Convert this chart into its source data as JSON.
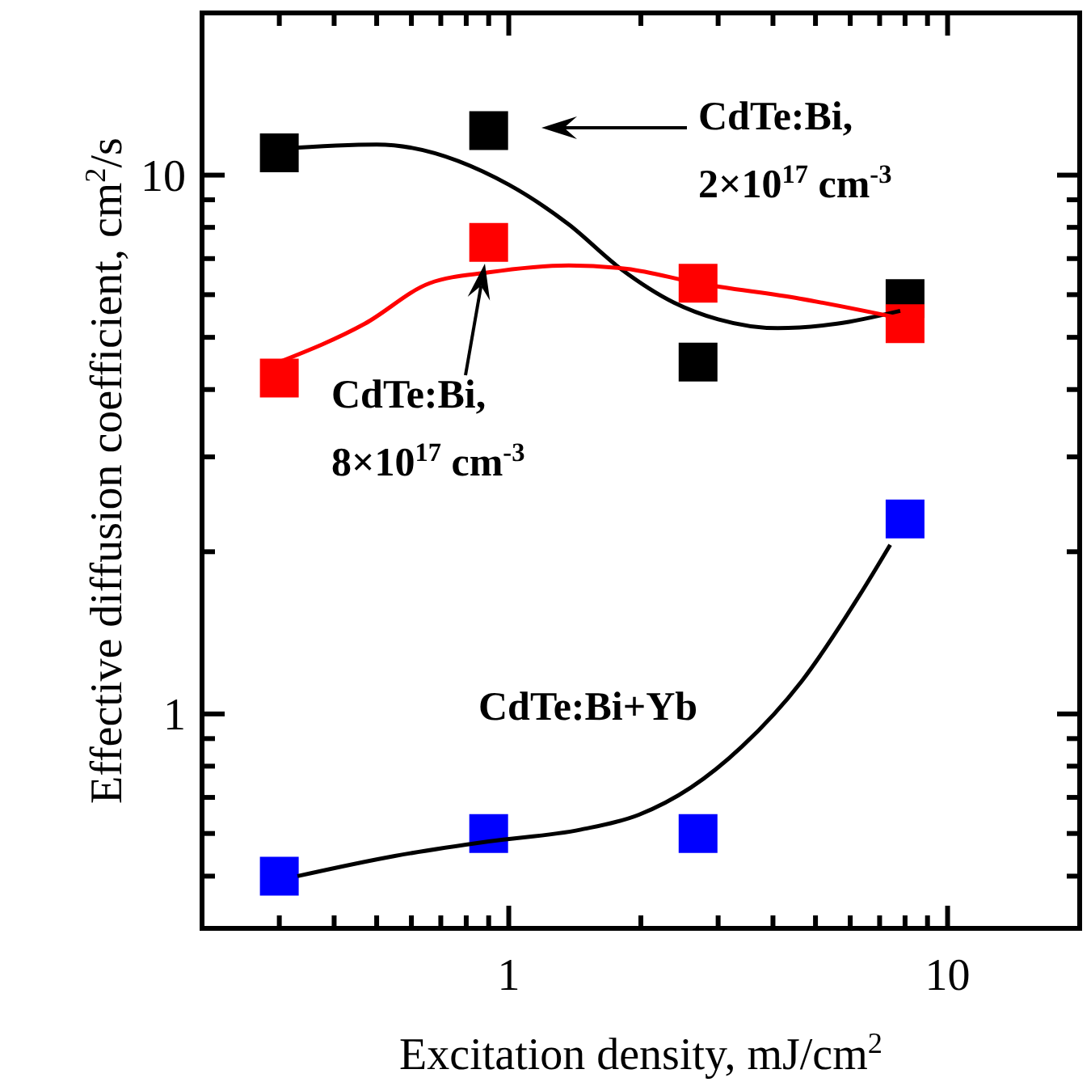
{
  "chart_data": {
    "type": "scatter",
    "xlabel": "Excitation density, mJ/cm$^{2}$",
    "ylabel": "Effective diffusion coefficient, cm$^{2}$/s",
    "log": "xy",
    "grid": false,
    "xlim": [
      0.2,
      20
    ],
    "ylim": [
      0.4,
      20
    ],
    "xticks": [
      {
        "value": 0.3,
        "label": null
      },
      {
        "value": 0.4,
        "label": null
      },
      {
        "value": 0.5,
        "label": null
      },
      {
        "value": 0.6,
        "label": null
      },
      {
        "value": 0.7,
        "label": null
      },
      {
        "value": 0.8,
        "label": null
      },
      {
        "value": 0.9,
        "label": null
      },
      1,
      {
        "value": 2,
        "label": null
      },
      {
        "value": 3,
        "label": null
      },
      {
        "value": 4,
        "label": null
      },
      {
        "value": 5,
        "label": null
      },
      {
        "value": 6,
        "label": null
      },
      {
        "value": 7,
        "label": null
      },
      {
        "value": 8,
        "label": null
      },
      {
        "value": 9,
        "label": null
      },
      10
    ],
    "yticks": [
      {
        "value": 0.5,
        "label": null
      },
      {
        "value": 0.6,
        "label": null
      },
      {
        "value": 0.7,
        "label": null
      },
      {
        "value": 0.8,
        "label": null
      },
      {
        "value": 0.9,
        "label": null
      },
      1,
      {
        "value": 2,
        "label": null
      },
      {
        "value": 3,
        "label": null
      },
      {
        "value": 4,
        "label": null
      },
      {
        "value": 5,
        "label": null
      },
      {
        "value": 6,
        "label": null
      },
      {
        "value": 7,
        "label": null
      },
      {
        "value": 8,
        "label": null
      },
      {
        "value": 9,
        "label": null
      },
      10
    ],
    "x": [
      0.3,
      0.9,
      2.7,
      8
    ],
    "series": [
      {
        "type": "line",
        "color": "#000000",
        "marker": "none",
        "x": [
          0.3,
          0.5,
          1,
          1.37,
          1.8,
          2.38,
          3,
          4.1,
          5.6,
          7.8
        ],
        "values": [
          11.2,
          11.4,
          9.6,
          8.1,
          6.7,
          5.8,
          5.4,
          5.2,
          5.3,
          5.6
        ]
      },
      {
        "type": "line",
        "color": "#ff0000",
        "marker": "none",
        "x": [
          0.3,
          0.47,
          0.66,
          0.9,
          1.37,
          1.86,
          2.7,
          4.6,
          8
        ],
        "values": [
          4.5,
          5.3,
          6.3,
          6.6,
          6.8,
          6.7,
          6.3,
          5.9,
          5.4
        ]
      },
      {
        "type": "line",
        "color": "#000000",
        "marker": "none",
        "x": [
          0.33,
          0.55,
          0.9,
          1.46,
          1.98,
          2.6,
          3.4,
          4.65,
          6.3,
          7.4
        ],
        "values": [
          0.5,
          0.545,
          0.58,
          0.61,
          0.65,
          0.73,
          0.87,
          1.15,
          1.66,
          2.06
        ]
      },
      {
        "color": "#000000",
        "marker": "square",
        "values": [
          11,
          12.1,
          4.5,
          5.9
        ]
      },
      {
        "color": "#ff0000",
        "marker": "square",
        "values": [
          4.2,
          7.5,
          6.3,
          5.3
        ]
      },
      {
        "color": "#0000ff",
        "marker": "square",
        "values": [
          0.5,
          0.6,
          0.6,
          2.3
        ]
      }
    ],
    "annotations": [
      "CdTe:Bi,\n2×10$^{17}$ cm$^{-3}$",
      "CdTe:Bi,\n8×10$^{17}$ cm$^{-3}$",
      "CdTe:Bi+Yb"
    ]
  }
}
